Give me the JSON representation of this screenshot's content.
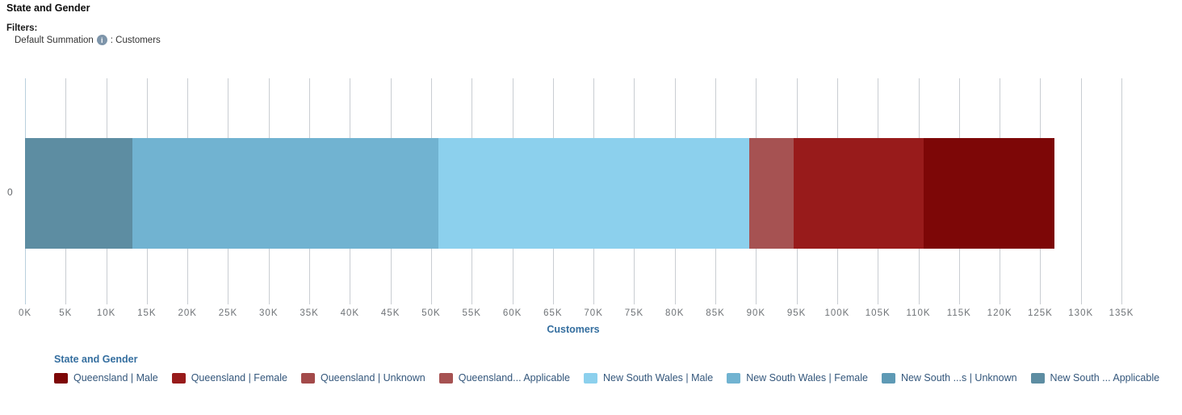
{
  "header": {
    "title": "State and Gender",
    "filters_label": "Filters:",
    "filter": {
      "name": "Default Summation",
      "info_glyph": "i",
      "separator_and_value": ": Customers"
    }
  },
  "chart_data": {
    "type": "bar",
    "orientation": "horizontal",
    "stacked": true,
    "title": "State and Gender",
    "xlabel": "Customers",
    "ylabel": "",
    "categories": [
      "0"
    ],
    "xlim": [
      0,
      135000
    ],
    "x_ticks": [
      "0K",
      "5K",
      "10K",
      "15K",
      "20K",
      "25K",
      "30K",
      "35K",
      "40K",
      "45K",
      "50K",
      "55K",
      "60K",
      "65K",
      "70K",
      "75K",
      "80K",
      "85K",
      "90K",
      "95K",
      "100K",
      "105K",
      "110K",
      "115K",
      "120K",
      "125K",
      "130K",
      "135K"
    ],
    "grid": true,
    "grid_color": "#c9cdd2",
    "zero_line_color": "#b9cfdd",
    "legend_position": "bottom",
    "segments": [
      {
        "label": "New South ... Applicable",
        "value": 13200,
        "color": "#5d8da2"
      },
      {
        "label": "New South Wales | Female",
        "value": 37700,
        "color": "#71b3d1"
      },
      {
        "label": "New South Wales | Male",
        "value": 38300,
        "color": "#8cd0ed"
      },
      {
        "label": "Queensland... Applicable",
        "value": 5400,
        "color": "#a65252"
      },
      {
        "label": "Queensland | Female",
        "value": 16000,
        "color": "#981b1b"
      },
      {
        "label": "Queensland | Male",
        "value": 16100,
        "color": "#7d0707"
      }
    ]
  },
  "legend": {
    "title": "State and Gender",
    "items": [
      {
        "label": "Queensland | Male",
        "color": "#7d0707"
      },
      {
        "label": "Queensland | Female",
        "color": "#981b1b"
      },
      {
        "label": "Queensland | Unknown",
        "color": "#a34a4a"
      },
      {
        "label": "Queensland... Applicable",
        "color": "#a65252"
      },
      {
        "label": "New South Wales | Male",
        "color": "#8cd0ed"
      },
      {
        "label": "New South Wales | Female",
        "color": "#71b3d1"
      },
      {
        "label": "New South ...s | Unknown",
        "color": "#5e9ab5"
      },
      {
        "label": "New South ... Applicable",
        "color": "#5d8da2"
      }
    ]
  }
}
